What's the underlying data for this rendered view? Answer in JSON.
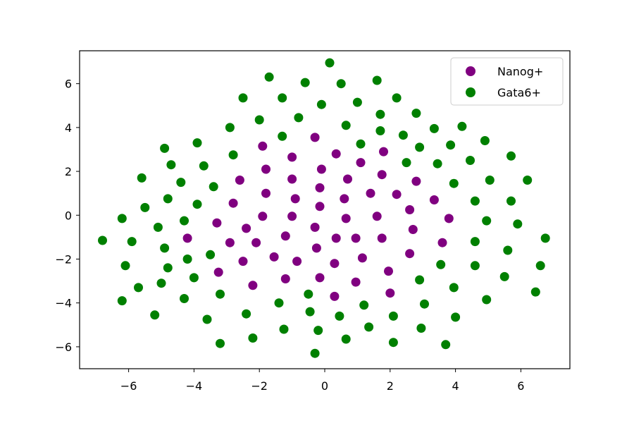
{
  "chart_data": {
    "type": "scatter",
    "title": "",
    "xlabel": "",
    "ylabel": "",
    "xlim": [
      -7.5,
      7.5
    ],
    "ylim": [
      -7,
      7.5
    ],
    "grid": false,
    "legend_position": "top-right",
    "xticks": [
      -6,
      -4,
      -2,
      0,
      2,
      4,
      6
    ],
    "xtick_labels": [
      "−6",
      "−4",
      "−2",
      "0",
      "2",
      "4",
      "6"
    ],
    "yticks": [
      -6,
      -4,
      -2,
      0,
      2,
      4,
      6
    ],
    "ytick_labels": [
      "−6",
      "−4",
      "−2",
      "0",
      "2",
      "4",
      "6"
    ],
    "series": [
      {
        "name": "Nanog+",
        "color": "#800080",
        "points": [
          [
            -0.3,
            3.55
          ],
          [
            -1.9,
            3.15
          ],
          [
            0.35,
            2.8
          ],
          [
            -1.0,
            2.65
          ],
          [
            1.8,
            2.9
          ],
          [
            1.1,
            2.4
          ],
          [
            -1.8,
            2.1
          ],
          [
            -0.1,
            2.1
          ],
          [
            -2.6,
            1.6
          ],
          [
            -1.0,
            1.65
          ],
          [
            0.7,
            1.65
          ],
          [
            1.75,
            1.85
          ],
          [
            2.8,
            1.55
          ],
          [
            -1.8,
            1.0
          ],
          [
            -0.15,
            1.25
          ],
          [
            1.4,
            1.0
          ],
          [
            2.2,
            0.95
          ],
          [
            -2.8,
            0.55
          ],
          [
            -0.9,
            0.75
          ],
          [
            0.6,
            0.75
          ],
          [
            3.35,
            0.7
          ],
          [
            -0.15,
            0.4
          ],
          [
            2.6,
            0.25
          ],
          [
            -1.9,
            -0.05
          ],
          [
            -1.0,
            -0.05
          ],
          [
            0.65,
            -0.15
          ],
          [
            1.6,
            -0.05
          ],
          [
            3.8,
            -0.15
          ],
          [
            -3.3,
            -0.35
          ],
          [
            -2.4,
            -0.6
          ],
          [
            -0.3,
            -0.55
          ],
          [
            2.7,
            -0.65
          ],
          [
            -4.2,
            -1.05
          ],
          [
            -2.9,
            -1.25
          ],
          [
            -2.1,
            -1.25
          ],
          [
            -1.2,
            -0.95
          ],
          [
            0.35,
            -1.05
          ],
          [
            0.95,
            -1.05
          ],
          [
            1.75,
            -1.05
          ],
          [
            3.6,
            -1.25
          ],
          [
            -0.25,
            -1.5
          ],
          [
            2.6,
            -1.75
          ],
          [
            -1.55,
            -1.9
          ],
          [
            -0.85,
            -2.1
          ],
          [
            1.15,
            -1.95
          ],
          [
            -2.5,
            -2.1
          ],
          [
            0.3,
            -2.2
          ],
          [
            -3.25,
            -2.6
          ],
          [
            1.95,
            -2.55
          ],
          [
            -1.2,
            -2.9
          ],
          [
            -0.15,
            -2.85
          ],
          [
            0.95,
            -3.05
          ],
          [
            -2.2,
            -3.2
          ],
          [
            2.0,
            -3.55
          ],
          [
            0.3,
            -3.7
          ]
        ]
      },
      {
        "name": "Gata6+",
        "color": "#008000",
        "points": [
          [
            0.15,
            6.95
          ],
          [
            -1.7,
            6.3
          ],
          [
            -0.6,
            6.05
          ],
          [
            0.5,
            6.0
          ],
          [
            1.6,
            6.15
          ],
          [
            -2.5,
            5.35
          ],
          [
            -1.3,
            5.35
          ],
          [
            -0.1,
            5.05
          ],
          [
            1.0,
            5.15
          ],
          [
            2.2,
            5.35
          ],
          [
            -2.0,
            4.35
          ],
          [
            -0.8,
            4.45
          ],
          [
            1.7,
            4.6
          ],
          [
            2.8,
            4.65
          ],
          [
            -2.9,
            4.0
          ],
          [
            0.65,
            4.1
          ],
          [
            1.7,
            3.85
          ],
          [
            2.4,
            3.65
          ],
          [
            3.35,
            3.95
          ],
          [
            4.2,
            4.05
          ],
          [
            -3.9,
            3.3
          ],
          [
            -1.3,
            3.6
          ],
          [
            1.1,
            3.25
          ],
          [
            2.9,
            3.1
          ],
          [
            3.85,
            3.2
          ],
          [
            4.9,
            3.4
          ],
          [
            -4.9,
            3.05
          ],
          [
            -2.8,
            2.75
          ],
          [
            2.5,
            2.4
          ],
          [
            3.45,
            2.35
          ],
          [
            4.45,
            2.5
          ],
          [
            5.7,
            2.7
          ],
          [
            -4.7,
            2.3
          ],
          [
            -3.7,
            2.25
          ],
          [
            -5.6,
            1.7
          ],
          [
            -4.4,
            1.5
          ],
          [
            -3.4,
            1.3
          ],
          [
            3.95,
            1.45
          ],
          [
            5.05,
            1.6
          ],
          [
            6.2,
            1.6
          ],
          [
            -4.8,
            0.75
          ],
          [
            -3.9,
            0.5
          ],
          [
            4.6,
            0.65
          ],
          [
            5.7,
            0.65
          ],
          [
            -5.5,
            0.35
          ],
          [
            -6.2,
            -0.15
          ],
          [
            -4.3,
            -0.25
          ],
          [
            4.95,
            -0.25
          ],
          [
            5.9,
            -0.4
          ],
          [
            -5.1,
            -0.55
          ],
          [
            -6.8,
            -1.15
          ],
          [
            -5.9,
            -1.2
          ],
          [
            4.6,
            -1.2
          ],
          [
            6.75,
            -1.05
          ],
          [
            -4.9,
            -1.5
          ],
          [
            -3.5,
            -1.8
          ],
          [
            5.6,
            -1.6
          ],
          [
            -4.2,
            -2.0
          ],
          [
            -6.1,
            -2.3
          ],
          [
            -4.8,
            -2.4
          ],
          [
            3.55,
            -2.25
          ],
          [
            4.6,
            -2.3
          ],
          [
            6.6,
            -2.3
          ],
          [
            -4.0,
            -2.85
          ],
          [
            2.9,
            -2.95
          ],
          [
            5.5,
            -2.8
          ],
          [
            -5.0,
            -3.1
          ],
          [
            -5.7,
            -3.3
          ],
          [
            -3.2,
            -3.6
          ],
          [
            -0.5,
            -3.6
          ],
          [
            3.95,
            -3.3
          ],
          [
            6.45,
            -3.5
          ],
          [
            -6.2,
            -3.9
          ],
          [
            -4.3,
            -3.8
          ],
          [
            -1.4,
            -4.0
          ],
          [
            1.2,
            -4.1
          ],
          [
            3.05,
            -4.05
          ],
          [
            4.95,
            -3.85
          ],
          [
            -5.2,
            -4.55
          ],
          [
            -2.4,
            -4.5
          ],
          [
            -0.45,
            -4.4
          ],
          [
            0.45,
            -4.6
          ],
          [
            2.1,
            -4.6
          ],
          [
            4.0,
            -4.65
          ],
          [
            -3.6,
            -4.75
          ],
          [
            -1.25,
            -5.2
          ],
          [
            -0.2,
            -5.25
          ],
          [
            1.35,
            -5.1
          ],
          [
            2.95,
            -5.15
          ],
          [
            -2.2,
            -5.6
          ],
          [
            0.65,
            -5.65
          ],
          [
            2.1,
            -5.8
          ],
          [
            -3.2,
            -5.85
          ],
          [
            3.7,
            -5.9
          ],
          [
            -0.3,
            -6.3
          ]
        ]
      }
    ]
  }
}
